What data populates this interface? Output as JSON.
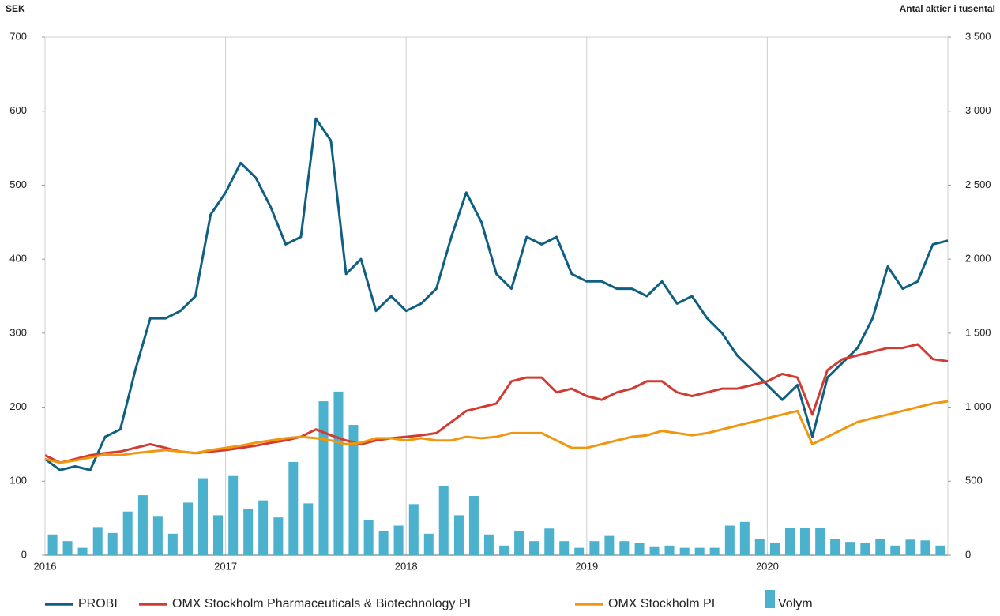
{
  "chart_data": {
    "type": "line",
    "y_axis_label": "SEK",
    "y2_axis_label": "Antal aktier i tusental",
    "xlim": [
      2016,
      2021
    ],
    "xticks": [
      2016,
      2017,
      2018,
      2019,
      2020
    ],
    "ylim": [
      0,
      700
    ],
    "yticks": [
      0,
      100,
      200,
      300,
      400,
      500,
      600,
      700
    ],
    "y2lim": [
      0,
      3500
    ],
    "y2ticks": [
      0,
      500,
      {
        "value": 1000,
        "label": "1 000"
      },
      {
        "value": 1500,
        "label": "1 500"
      },
      {
        "value": 2000,
        "label": "2 000"
      },
      {
        "value": 2500,
        "label": "2 500"
      },
      {
        "value": 3000,
        "label": "3 000"
      },
      {
        "value": 3500,
        "label": "3 500"
      }
    ],
    "grid": true,
    "x": [
      2016,
      2016.083,
      2016.167,
      2016.25,
      2016.333,
      2016.417,
      2016.5,
      2016.583,
      2016.667,
      2016.75,
      2016.833,
      2016.917,
      2017,
      2017.083,
      2017.167,
      2017.25,
      2017.333,
      2017.417,
      2017.5,
      2017.583,
      2017.667,
      2017.75,
      2017.833,
      2017.917,
      2018,
      2018.083,
      2018.167,
      2018.25,
      2018.333,
      2018.417,
      2018.5,
      2018.583,
      2018.667,
      2018.75,
      2018.833,
      2018.917,
      2019,
      2019.083,
      2019.167,
      2019.25,
      2019.333,
      2019.417,
      2019.5,
      2019.583,
      2019.667,
      2019.75,
      2019.833,
      2019.917,
      2020,
      2020.083,
      2020.167,
      2020.25,
      2020.333,
      2020.417,
      2020.5,
      2020.583,
      2020.667,
      2020.75,
      2020.833,
      2020.917,
      2021
    ],
    "series": [
      {
        "name": "PROBI",
        "color": "#0f5f82",
        "values": [
          130,
          115,
          120,
          115,
          160,
          170,
          250,
          320,
          320,
          330,
          350,
          460,
          490,
          530,
          510,
          470,
          420,
          430,
          590,
          560,
          380,
          400,
          330,
          350,
          330,
          340,
          360,
          430,
          490,
          450,
          380,
          360,
          430,
          420,
          430,
          380,
          370,
          370,
          360,
          360,
          350,
          370,
          340,
          350,
          320,
          300,
          270,
          250,
          230,
          210,
          230,
          160,
          240,
          260,
          280,
          320,
          390,
          360,
          370,
          420,
          425
        ]
      },
      {
        "name": "OMX Stockholm Pharmaceuticals & Biotechnology PI",
        "color": "#d23b32",
        "values": [
          135,
          125,
          130,
          135,
          138,
          140,
          145,
          150,
          145,
          140,
          138,
          140,
          142,
          145,
          148,
          152,
          155,
          160,
          170,
          162,
          155,
          150,
          155,
          158,
          160,
          162,
          165,
          180,
          195,
          200,
          205,
          235,
          240,
          240,
          220,
          225,
          215,
          210,
          220,
          225,
          235,
          235,
          220,
          215,
          220,
          225,
          225,
          230,
          235,
          245,
          240,
          190,
          250,
          265,
          270,
          275,
          280,
          280,
          285,
          265,
          262
        ]
      },
      {
        "name": "OMX Stockholm PI",
        "color": "#f0960f",
        "values": [
          130,
          125,
          128,
          132,
          136,
          135,
          138,
          140,
          142,
          140,
          138,
          142,
          145,
          148,
          152,
          155,
          158,
          160,
          158,
          155,
          150,
          152,
          158,
          158,
          155,
          158,
          155,
          155,
          160,
          158,
          160,
          165,
          165,
          165,
          155,
          145,
          145,
          150,
          155,
          160,
          162,
          168,
          165,
          162,
          165,
          170,
          175,
          180,
          185,
          190,
          195,
          150,
          160,
          170,
          180,
          185,
          190,
          195,
          200,
          205,
          208
        ]
      },
      {
        "name": "Volym",
        "color": "#4bb1cc",
        "type": "bar",
        "axis": "y2",
        "x": [
          2016.042,
          2016.125,
          2016.208,
          2016.292,
          2016.375,
          2016.458,
          2016.542,
          2016.625,
          2016.708,
          2016.792,
          2016.875,
          2016.958,
          2017.042,
          2017.125,
          2017.208,
          2017.292,
          2017.375,
          2017.458,
          2017.542,
          2017.625,
          2017.708,
          2017.792,
          2017.875,
          2017.958,
          2018.042,
          2018.125,
          2018.208,
          2018.292,
          2018.375,
          2018.458,
          2018.542,
          2018.625,
          2018.708,
          2018.792,
          2018.875,
          2018.958,
          2019.042,
          2019.125,
          2019.208,
          2019.292,
          2019.375,
          2019.458,
          2019.542,
          2019.625,
          2019.708,
          2019.792,
          2019.875,
          2019.958,
          2020.042,
          2020.125,
          2020.208,
          2020.292,
          2020.375,
          2020.458,
          2020.542,
          2020.625,
          2020.708,
          2020.792,
          2020.875,
          2020.958
        ],
        "values": [
          140,
          95,
          50,
          190,
          150,
          295,
          405,
          260,
          145,
          355,
          520,
          270,
          535,
          315,
          370,
          255,
          630,
          350,
          1040,
          1105,
          880,
          240,
          160,
          200,
          345,
          145,
          465,
          270,
          400,
          140,
          65,
          160,
          95,
          180,
          95,
          50,
          95,
          130,
          95,
          80,
          60,
          65,
          50,
          50,
          50,
          200,
          225,
          110,
          85,
          185,
          185,
          185,
          110,
          90,
          80,
          110,
          65,
          105,
          100,
          65
        ]
      }
    ]
  }
}
